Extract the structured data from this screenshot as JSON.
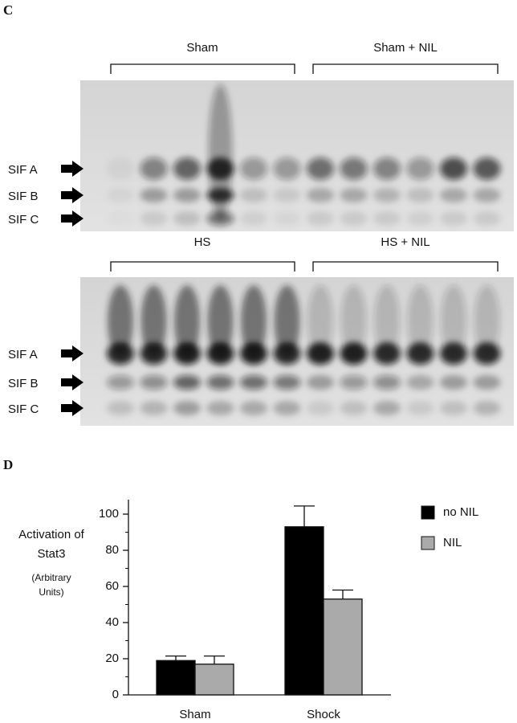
{
  "panel_c": {
    "label": "C",
    "top": {
      "groups": [
        "Sham",
        "Sham + NIL"
      ],
      "bands": [
        "SIF A",
        "SIF B",
        "SIF C"
      ]
    },
    "bottom": {
      "groups": [
        "HS",
        "HS + NIL"
      ],
      "bands": [
        "SIF A",
        "SIF B",
        "SIF C"
      ]
    }
  },
  "chart_data": {
    "type": "bar",
    "panel_label": "D",
    "ylabel_lines": [
      "Activation of",
      "Stat3"
    ],
    "ylabel_note_lines": [
      "(Arbitrary",
      "Units)"
    ],
    "categories": [
      "Sham",
      "Shock"
    ],
    "series": [
      {
        "name": "no NIL",
        "color": "#000000",
        "values": [
          19,
          93
        ],
        "errors": [
          2.5,
          11.5
        ]
      },
      {
        "name": "NIL",
        "color": "#aaaaaa",
        "values": [
          17,
          53
        ],
        "errors": [
          4.5,
          5
        ]
      }
    ],
    "ylim": [
      0,
      108
    ],
    "yticks": [
      0,
      20,
      40,
      60,
      80,
      100
    ],
    "minor_yticks": [
      10,
      30,
      50,
      70,
      90
    ],
    "grid": false,
    "legend": "outside-right"
  }
}
